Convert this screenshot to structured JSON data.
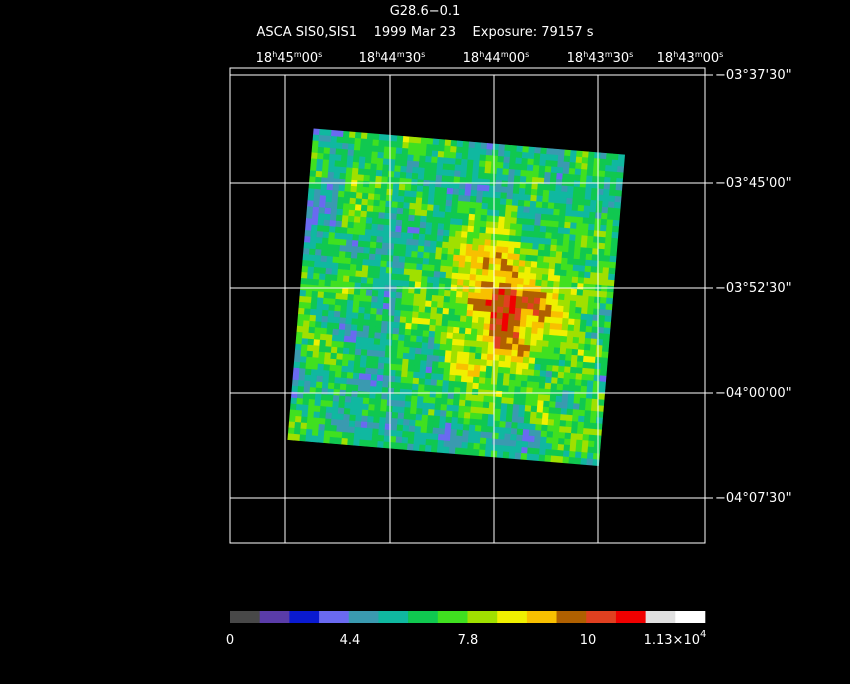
{
  "header": {
    "title": "G28.6−0.1",
    "subtitle": "ASCA SIS0,SIS1    1999 Mar 23    Exposure: 79157 s"
  },
  "ra_labels": [
    [
      "18",
      "h",
      "45",
      "m",
      "00",
      "s"
    ],
    [
      "18",
      "h",
      "44",
      "m",
      "30",
      "s"
    ],
    [
      "18",
      "h",
      "44",
      "m",
      "00",
      "s"
    ],
    [
      "18",
      "h",
      "43",
      "m",
      "30",
      "s"
    ],
    [
      "18",
      "h",
      "43",
      "m",
      "00",
      "s"
    ]
  ],
  "dec_labels": [
    "−03°37'30\"",
    "−03°45'00\"",
    "−03°52'30\"",
    "−04°00'00\"",
    "−04°07'30\""
  ],
  "colorbar": {
    "colors": [
      "#484848",
      "#5a3ca8",
      "#0a1ad0",
      "#6a6af0",
      "#3a9ab0",
      "#10b8a0",
      "#10c850",
      "#40e020",
      "#a0e000",
      "#f0f000",
      "#f8c000",
      "#b06000",
      "#e04020",
      "#f00000",
      "#e0e0e0",
      "#ffffff"
    ],
    "labels": [
      "0",
      "4.4",
      "7.8",
      "10"
    ],
    "last_label": {
      "mantissa": "1.13×10",
      "exponent": "4"
    }
  }
}
